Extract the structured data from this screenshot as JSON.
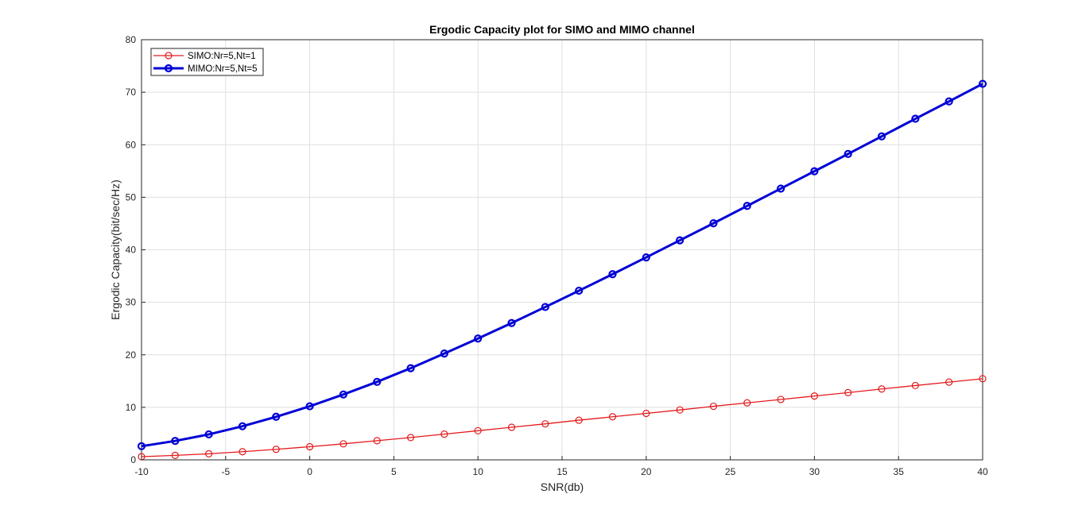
{
  "chart_data": {
    "type": "line",
    "title": "Ergodic Capacity plot for SIMO and MIMO channel",
    "xlabel": "SNR(db)",
    "ylabel": "Ergodic Capacity(bit/sec/Hz)",
    "xlim": [
      -10,
      40
    ],
    "ylim": [
      0,
      80
    ],
    "xticks": [
      -10,
      -5,
      0,
      5,
      10,
      15,
      20,
      25,
      30,
      35,
      40
    ],
    "yticks": [
      0,
      10,
      20,
      30,
      40,
      50,
      60,
      70,
      80
    ],
    "grid": true,
    "legend_position": "top-left",
    "x": [
      -10,
      -8,
      -6,
      -4,
      -2,
      0,
      2,
      4,
      6,
      8,
      10,
      12,
      14,
      16,
      18,
      20,
      22,
      24,
      26,
      28,
      30,
      32,
      34,
      36,
      38,
      40
    ],
    "series": [
      {
        "name": "SIMO:Nr=5,Nt=1",
        "color": "#e41a1c",
        "marker": "circle",
        "line_width": "thin",
        "values": [
          0.6,
          0.85,
          1.15,
          1.55,
          2.0,
          2.5,
          3.05,
          3.65,
          4.25,
          4.9,
          5.55,
          6.2,
          6.85,
          7.55,
          8.2,
          8.85,
          9.5,
          10.2,
          10.85,
          11.5,
          12.15,
          12.8,
          13.5,
          14.15,
          14.8,
          15.45
        ]
      },
      {
        "name": "MIMO:Nr=5,Nt=5",
        "color": "#0000d6",
        "marker": "circle",
        "line_width": "thick",
        "values": [
          2.6,
          3.6,
          4.85,
          6.4,
          8.2,
          10.2,
          12.45,
          14.85,
          17.45,
          20.25,
          23.1,
          26.05,
          29.1,
          32.2,
          35.35,
          38.55,
          41.8,
          45.05,
          48.35,
          51.65,
          54.95,
          58.25,
          61.6,
          64.95,
          68.25,
          71.6
        ]
      }
    ]
  }
}
